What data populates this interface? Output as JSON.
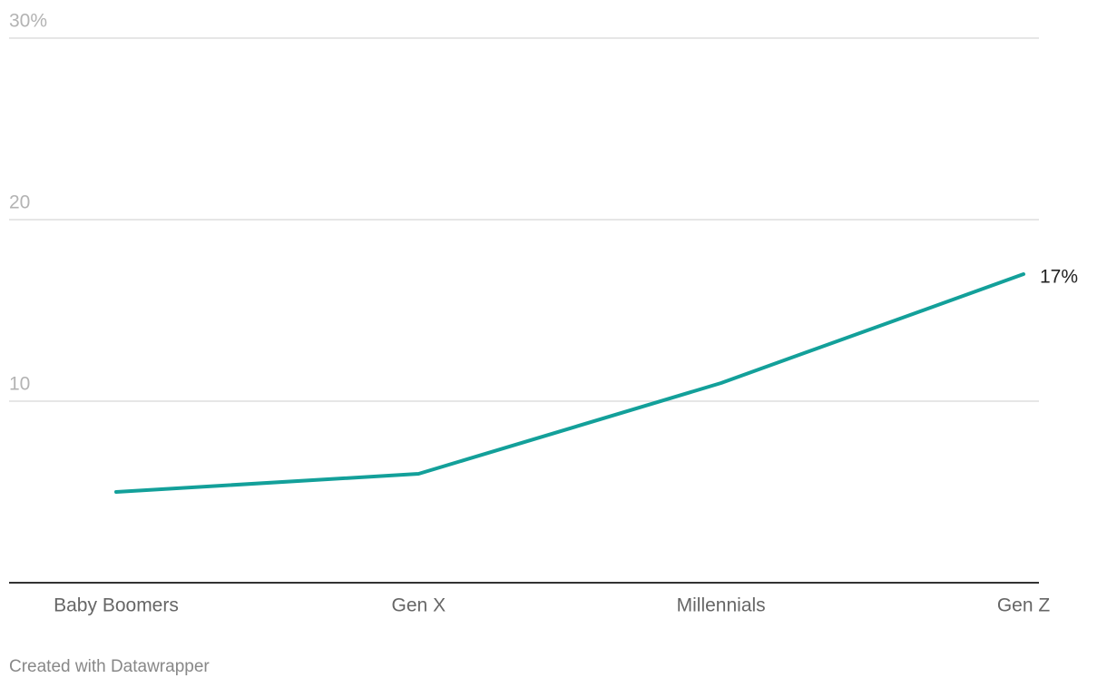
{
  "chart_data": {
    "type": "line",
    "categories": [
      "Baby Boomers",
      "Gen X",
      "Millennials",
      "Gen Z"
    ],
    "values": [
      5,
      6,
      11,
      17
    ],
    "value_labels": [
      null,
      null,
      null,
      "17%"
    ],
    "color": "#13a09a",
    "ylim": [
      0,
      30
    ],
    "yticks": [
      10,
      20,
      {
        "value": 30,
        "label": "30%"
      }
    ],
    "grid": true,
    "credit": "Created with Datawrapper"
  }
}
